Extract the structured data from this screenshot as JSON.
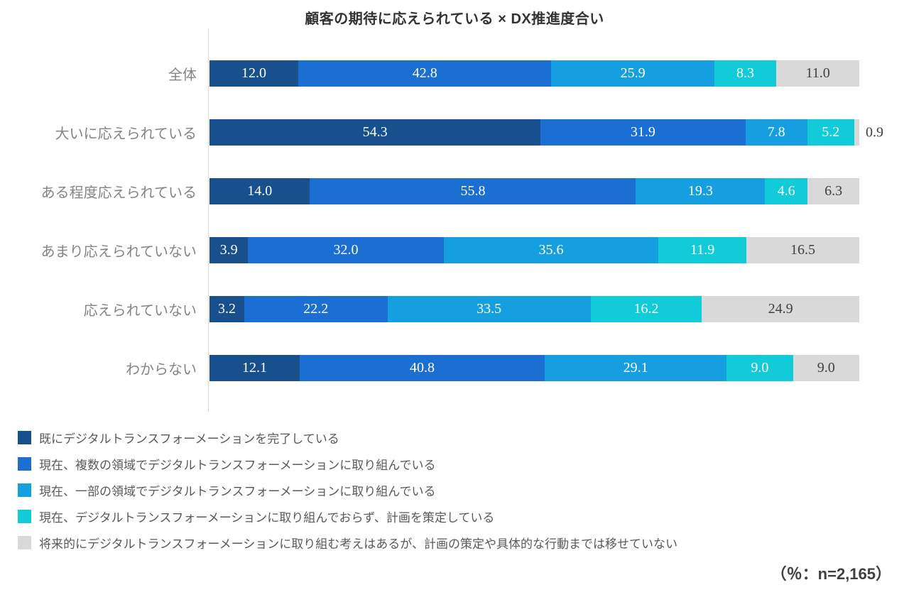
{
  "title": "顧客の期待に応えられている × DX推進度合い",
  "footnote": "（％：n=2,165）",
  "axis_color": "#d9d9d9",
  "chart_data": {
    "type": "bar",
    "orientation": "horizontal",
    "stacked": true,
    "unit": "%",
    "xlim": [
      0,
      100
    ],
    "title": "顧客の期待に応えられている × DX推進度合い",
    "sample_note": "（％：n=2,165）",
    "categories": [
      "全体",
      "大いに応えられている",
      "ある程度応えられている",
      "あまり応えられていない",
      "応えられていない",
      "わからない"
    ],
    "series": [
      {
        "name": "既にデジタルトランスフォーメーションを完了している",
        "color": "#17508D",
        "values": [
          12.0,
          54.3,
          14.0,
          3.9,
          3.2,
          12.1
        ]
      },
      {
        "name": "現在、複数の領域でデジタルトランスフォーメーションに取り組んでいる",
        "color": "#1B6FD2",
        "values": [
          42.8,
          31.9,
          55.8,
          32.0,
          22.2,
          40.8
        ]
      },
      {
        "name": "現在、一部の領域でデジタルトランスフォーメーションに取り組んでいる",
        "color": "#169FE0",
        "values": [
          25.9,
          7.8,
          19.3,
          35.6,
          33.5,
          29.1
        ]
      },
      {
        "name": "現在、デジタルトランスフォーメーションに取り組んでおらず、計画を策定している",
        "color": "#12CBD8",
        "values": [
          8.3,
          5.2,
          4.6,
          11.9,
          16.2,
          9.0
        ]
      },
      {
        "name": "将来的にデジタルトランスフォーメーションに取り組む考えはあるが、計画の策定や具体的な行動までは移せていない",
        "color": "#D9D9D9",
        "values": [
          11.0,
          0.9,
          6.3,
          16.5,
          24.9,
          9.0
        ],
        "label_color": "#404040"
      }
    ]
  }
}
